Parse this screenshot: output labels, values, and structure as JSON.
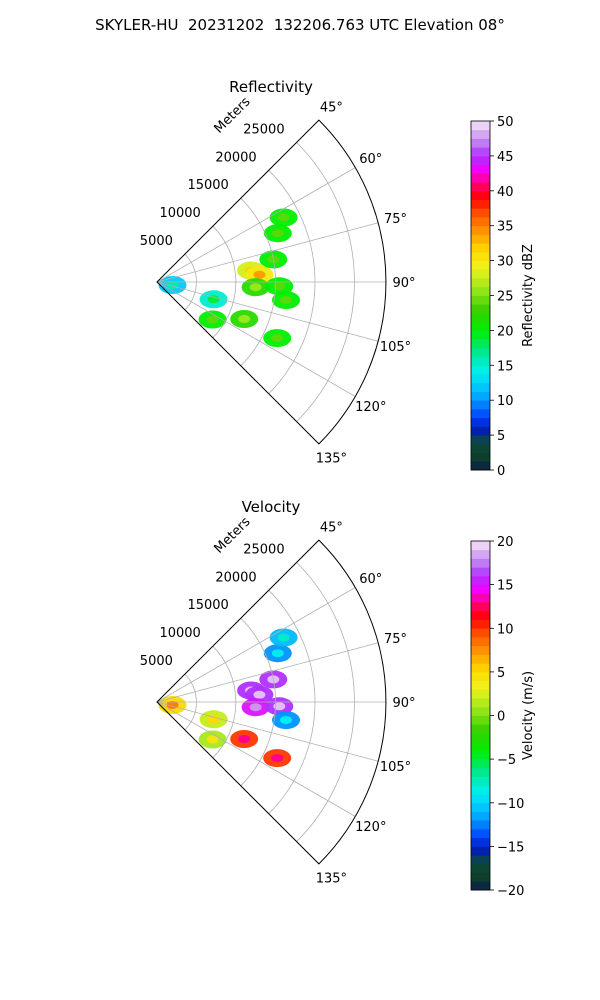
{
  "figure": {
    "suptitle": "SKYLER-HU  20231202  132206.763 UTC Elevation 08°"
  },
  "chart_data": [
    {
      "type": "heatmap",
      "projection": "polar-sector",
      "title": "Reflectivity",
      "radial_axis_label": "Meters",
      "radial_ticks": [
        5000,
        10000,
        15000,
        20000,
        25000
      ],
      "range_max_m": 29000,
      "azimuth_ticks_deg": [
        "45°",
        "60°",
        "75°",
        "90°",
        "105°",
        "120°",
        "135°"
      ],
      "azimuth_range_deg": [
        45,
        135
      ],
      "grid": true,
      "colorbar": {
        "label": "Reflectivity dBZ",
        "min": 0,
        "max": 50,
        "ticks": [
          0,
          5,
          10,
          15,
          20,
          25,
          30,
          35,
          40,
          45,
          50
        ]
      },
      "echoes": [
        {
          "az_deg": 83,
          "range_m": 12000,
          "value": 28
        },
        {
          "az_deg": 86,
          "range_m": 13000,
          "value": 30
        },
        {
          "az_deg": 79,
          "range_m": 15000,
          "value": 20
        },
        {
          "az_deg": 93,
          "range_m": 12500,
          "value": 22
        },
        {
          "az_deg": 92,
          "range_m": 15500,
          "value": 20
        },
        {
          "az_deg": 68,
          "range_m": 16500,
          "value": 20
        },
        {
          "az_deg": 63,
          "range_m": 18000,
          "value": 20
        },
        {
          "az_deg": 98,
          "range_m": 16500,
          "value": 20
        },
        {
          "az_deg": 107,
          "range_m": 7500,
          "value": 15
        },
        {
          "az_deg": 113,
          "range_m": 12000,
          "value": 22
        },
        {
          "az_deg": 115,
          "range_m": 16800,
          "value": 20
        },
        {
          "az_deg": 124,
          "range_m": 8500,
          "value": 20
        },
        {
          "az_deg": 101,
          "range_m": 2000,
          "value": 12
        }
      ]
    },
    {
      "type": "heatmap",
      "projection": "polar-sector",
      "title": "Velocity",
      "radial_axis_label": "Meters",
      "radial_ticks": [
        5000,
        10000,
        15000,
        20000,
        25000
      ],
      "range_max_m": 29000,
      "azimuth_ticks_deg": [
        "45°",
        "60°",
        "75°",
        "90°",
        "105°",
        "120°",
        "135°"
      ],
      "azimuth_range_deg": [
        45,
        135
      ],
      "grid": true,
      "colorbar": {
        "label": "Velocity (m/s)",
        "min": -20,
        "max": 20,
        "ticks": [
          -20,
          -15,
          -10,
          -5,
          0,
          5,
          10,
          15,
          20
        ]
      },
      "echoes": [
        {
          "az_deg": 83,
          "range_m": 12000,
          "value": 16
        },
        {
          "az_deg": 86,
          "range_m": 13000,
          "value": 16
        },
        {
          "az_deg": 79,
          "range_m": 15000,
          "value": 16
        },
        {
          "az_deg": 93,
          "range_m": 12500,
          "value": 15
        },
        {
          "az_deg": 92,
          "range_m": 15500,
          "value": 16
        },
        {
          "az_deg": 68,
          "range_m": 16500,
          "value": -12
        },
        {
          "az_deg": 63,
          "range_m": 18000,
          "value": -11
        },
        {
          "az_deg": 98,
          "range_m": 16500,
          "value": -12
        },
        {
          "az_deg": 107,
          "range_m": 7500,
          "value": 2
        },
        {
          "az_deg": 113,
          "range_m": 12000,
          "value": 10
        },
        {
          "az_deg": 115,
          "range_m": 16800,
          "value": 10
        },
        {
          "az_deg": 124,
          "range_m": 8500,
          "value": 1
        },
        {
          "az_deg": 101,
          "range_m": 2000,
          "value": 5
        }
      ]
    }
  ]
}
